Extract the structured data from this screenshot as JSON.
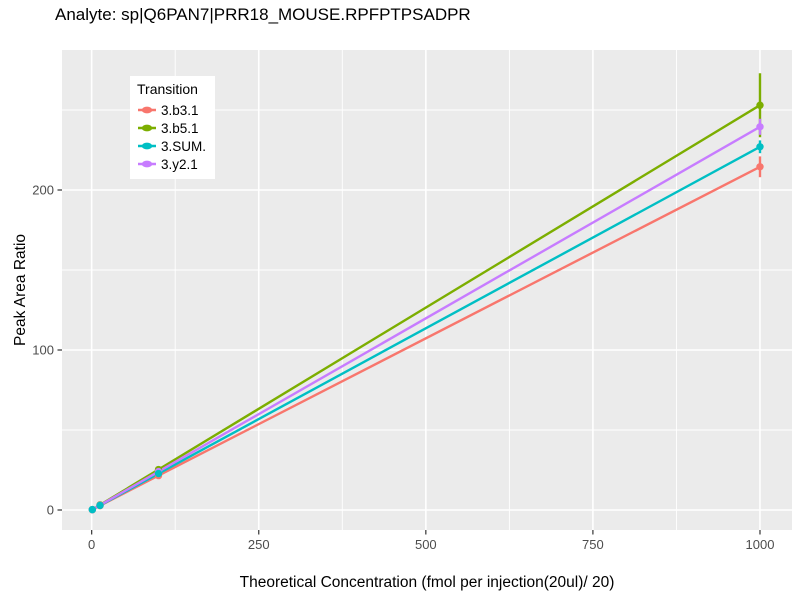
{
  "title": "Analyte: sp|Q6PAN7|PRR18_MOUSE.RPFPTPSADPR",
  "legend": {
    "title": "Transition"
  },
  "colors": {
    "panel_bg": "#EBEBEB",
    "grid_major": "#FFFFFF",
    "grid_minor": "#FFFFFF",
    "tick_mark": "#333333",
    "tick_label": "#4D4D4D",
    "text": "#000000",
    "legend_bg": "#FFFFFF"
  },
  "chart_data": {
    "type": "line",
    "title": "Analyte: sp|Q6PAN7|PRR18_MOUSE.RPFPTPSADPR",
    "xlabel": "Theoretical Concentration (fmol per injection(20ul)/ 20)",
    "ylabel": "Peak Area Ratio",
    "legend_title": "Transition",
    "legend_position": "top-left-inset",
    "grid": "white major and minor gridlines on grey panel",
    "x_ticks": [
      0,
      250,
      500,
      750,
      1000
    ],
    "y_ticks": [
      0,
      100,
      200
    ],
    "x_minor_ticks": [
      125,
      375,
      625,
      875
    ],
    "y_minor_ticks": [
      50,
      150,
      250
    ],
    "xlim": [
      -44.4,
      1047.9
    ],
    "ylim": [
      -12.5,
      287.5
    ],
    "x": [
      1,
      12.5,
      100,
      1000
    ],
    "series": [
      {
        "name": "3.b3.1",
        "color": "#F8766D",
        "y": [
          0.21,
          2.7,
          21.5,
          214.5
        ],
        "errorbars": [
          {
            "x": 1000,
            "ymin": 208,
            "ymax": 221
          }
        ]
      },
      {
        "name": "3.b5.1",
        "color": "#7CAE00",
        "y": [
          0.25,
          3.2,
          25.3,
          253
        ],
        "errorbars": [
          {
            "x": 1000,
            "ymin": 233,
            "ymax": 273
          }
        ]
      },
      {
        "name": "3.SUM.",
        "color": "#00BFC4",
        "y": [
          0.23,
          2.85,
          22.8,
          227
        ],
        "errorbars": [
          {
            "x": 1000,
            "ymin": 223,
            "ymax": 231
          }
        ]
      },
      {
        "name": "3.y2.1",
        "color": "#C77CFF",
        "y": [
          0.24,
          3.0,
          24.0,
          239.5
        ],
        "errorbars": [
          {
            "x": 1000,
            "ymin": 234.5,
            "ymax": 244.5
          }
        ]
      }
    ]
  }
}
